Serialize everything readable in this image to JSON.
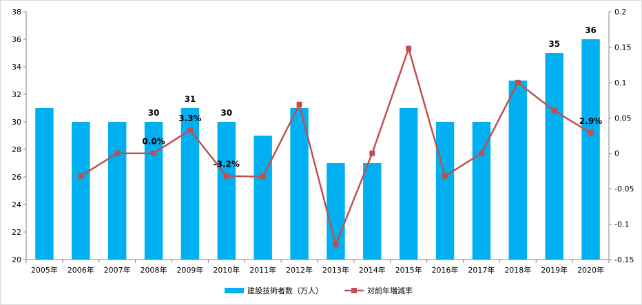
{
  "chart_data": {
    "type": "bar+line",
    "categories": [
      "2005年",
      "2006年",
      "2007年",
      "2008年",
      "2009年",
      "2010年",
      "2011年",
      "2012年",
      "2013年",
      "2014年",
      "2015年",
      "2016年",
      "2017年",
      "2018年",
      "2019年",
      "2020年"
    ],
    "series": [
      {
        "name": "建設技術者数（万人）",
        "type": "bar",
        "axis": "left",
        "color": "#00b0f0",
        "values": [
          31,
          30,
          30,
          30,
          31,
          30,
          29,
          31,
          27,
          27,
          31,
          30,
          30,
          33,
          35,
          36
        ]
      },
      {
        "name": "対前年増減率",
        "type": "line",
        "axis": "right",
        "color": "#c0504d",
        "values": [
          null,
          -0.032,
          0.0,
          0.0,
          0.033,
          -0.032,
          -0.033,
          0.069,
          -0.129,
          0.0,
          0.148,
          -0.032,
          0.0,
          0.1,
          0.06,
          0.029
        ]
      }
    ],
    "y_left": {
      "min": 20,
      "max": 38,
      "ticks": [
        "20",
        "22",
        "24",
        "26",
        "28",
        "30",
        "32",
        "34",
        "36",
        "38"
      ]
    },
    "y_right": {
      "min": -0.15,
      "max": 0.2,
      "ticks": [
        "-0.15",
        "-0.1",
        "-0.05",
        "0",
        "0.05",
        "0.1",
        "0.15",
        "0.2"
      ]
    },
    "bar_labels": [
      {
        "index": 3,
        "text": "30"
      },
      {
        "index": 4,
        "text": "31"
      },
      {
        "index": 5,
        "text": "30"
      },
      {
        "index": 14,
        "text": "35"
      },
      {
        "index": 15,
        "text": "36"
      }
    ],
    "line_labels": [
      {
        "index": 3,
        "text": "0.0%"
      },
      {
        "index": 4,
        "text": "3.3%"
      },
      {
        "index": 5,
        "text": "-3.2%"
      },
      {
        "index": 15,
        "text": "2.9%"
      }
    ],
    "legend": {
      "position": "bottom"
    },
    "grid": false
  }
}
